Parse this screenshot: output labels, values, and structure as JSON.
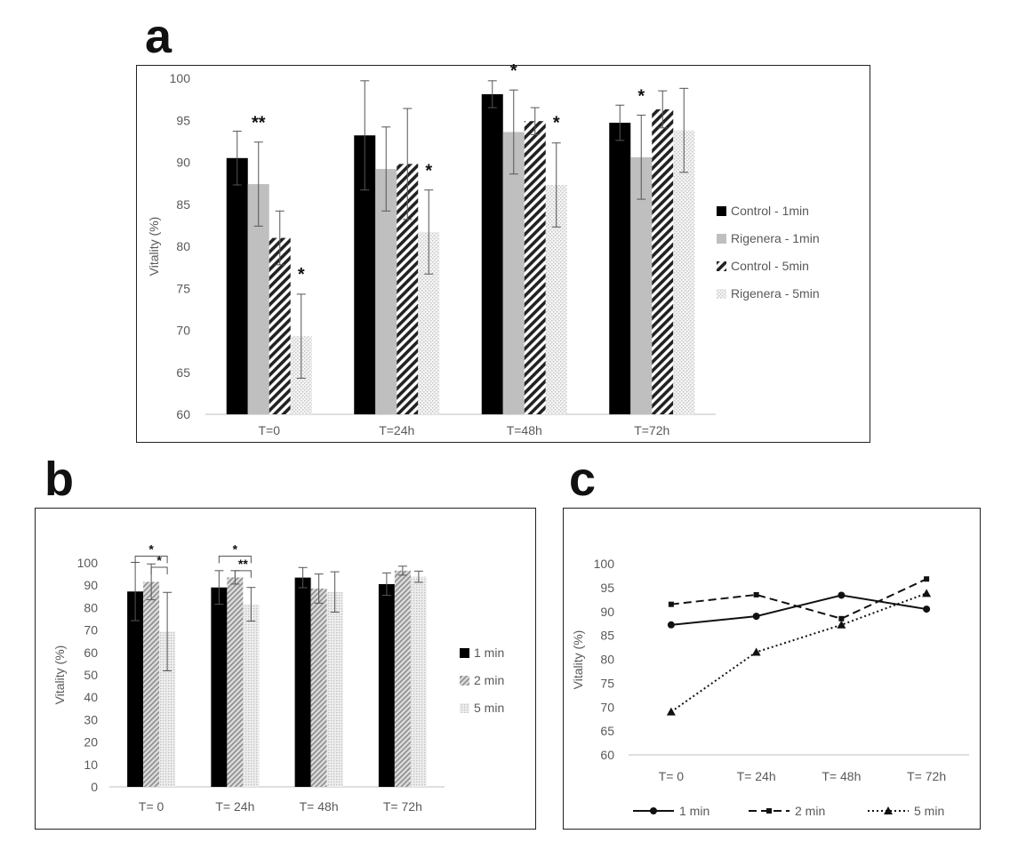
{
  "panels": {
    "a": "a",
    "b": "b",
    "c": "c"
  },
  "chart_data": [
    {
      "id": "a",
      "type": "bar",
      "categories": [
        "T=0",
        "T=24h",
        "T=48h",
        "T=72h"
      ],
      "ylabel": "Vitality (%)",
      "ylim": [
        60,
        100
      ],
      "yticks": [
        60,
        65,
        70,
        75,
        80,
        85,
        90,
        95,
        100
      ],
      "legend_position": "right",
      "series": [
        {
          "name": "Control - 1min",
          "pattern": "solid-black",
          "values": [
            90.5,
            93.2,
            98.1,
            94.7
          ],
          "err": [
            3.2,
            6.5,
            1.6,
            2.1
          ]
        },
        {
          "name": "Rigenera - 1min",
          "pattern": "solid-gray",
          "values": [
            87.4,
            89.2,
            93.6,
            90.6
          ],
          "err": [
            5.0,
            5.0,
            5.0,
            5.0
          ]
        },
        {
          "name": "Control - 5min",
          "pattern": "diagonal",
          "values": [
            81.0,
            89.8,
            94.9,
            96.3
          ],
          "err": [
            3.2,
            6.6,
            1.6,
            2.2
          ]
        },
        {
          "name": "Rigenera - 5min",
          "pattern": "dotted",
          "values": [
            69.3,
            81.7,
            87.3,
            93.8
          ],
          "err": [
            5.0,
            5.0,
            5.0,
            5.0
          ]
        }
      ],
      "annotations": [
        {
          "text": "**",
          "category": 0,
          "series": 1,
          "y": 94.0
        },
        {
          "text": "*",
          "category": 0,
          "series": 3,
          "y": 76.0
        },
        {
          "text": "*",
          "category": 1,
          "series": 3,
          "y": 88.3
        },
        {
          "text": "*",
          "category": 2,
          "series": 1,
          "y": 100.2
        },
        {
          "text": "*",
          "category": 2,
          "series": 3,
          "y": 94.0
        },
        {
          "text": "*",
          "category": 3,
          "series": 1,
          "y": 97.2
        }
      ]
    },
    {
      "id": "b",
      "type": "bar",
      "categories": [
        "T= 0",
        "T= 24h",
        "T= 48h",
        "T= 72h"
      ],
      "ylabel": "Vitality (%)",
      "ylim": [
        0,
        100
      ],
      "yticks": [
        0,
        10,
        20,
        30,
        40,
        50,
        60,
        70,
        80,
        90,
        100
      ],
      "legend_position": "right",
      "series": [
        {
          "name": "1 min",
          "pattern": "solid-black",
          "values": [
            87.2,
            89.0,
            93.4,
            90.5
          ],
          "err": [
            13.0,
            7.5,
            4.5,
            5.0
          ]
        },
        {
          "name": "2 min",
          "pattern": "dense-hatch",
          "values": [
            91.5,
            93.5,
            88.5,
            96.5
          ],
          "err": [
            8.0,
            3.0,
            6.5,
            2.0
          ]
        },
        {
          "name": "5 min",
          "pattern": "light-dotted",
          "values": [
            69.3,
            81.5,
            87.0,
            93.8
          ],
          "err": [
            17.5,
            7.5,
            9.0,
            2.5
          ]
        }
      ],
      "brackets": [
        {
          "text": "*",
          "category": 0,
          "from": 0,
          "to": 2,
          "y": 103
        },
        {
          "text": "*",
          "category": 0,
          "from": 1,
          "to": 2,
          "y": 98
        },
        {
          "text": "*",
          "category": 1,
          "from": 0,
          "to": 2,
          "y": 103
        },
        {
          "text": "**",
          "category": 1,
          "from": 1,
          "to": 2,
          "y": 96.5
        }
      ]
    },
    {
      "id": "c",
      "type": "line",
      "categories": [
        "T= 0",
        "T= 24h",
        "T= 48h",
        "T= 72h"
      ],
      "ylabel": "Vitality (%)",
      "ylim": [
        60,
        100
      ],
      "yticks": [
        60,
        65,
        70,
        75,
        80,
        85,
        90,
        95,
        100
      ],
      "legend_position": "bottom",
      "series": [
        {
          "name": "1 min",
          "line": "solid",
          "marker": "circle",
          "values": [
            87.2,
            89.0,
            93.4,
            90.5
          ]
        },
        {
          "name": "2 min",
          "line": "dashed",
          "marker": "square",
          "values": [
            91.5,
            93.5,
            88.5,
            96.8
          ]
        },
        {
          "name": "5 min",
          "line": "dotted",
          "marker": "triangle",
          "values": [
            69.0,
            81.5,
            87.2,
            93.8
          ]
        }
      ]
    }
  ]
}
